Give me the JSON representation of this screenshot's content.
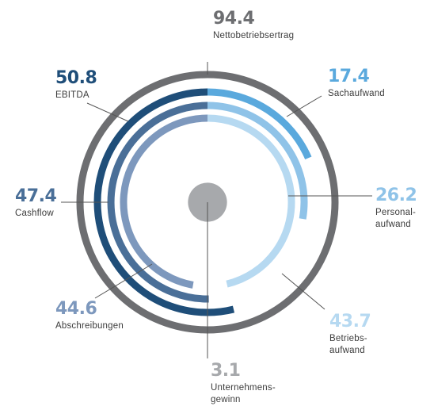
{
  "chart_data": {
    "type": "radial-bar",
    "title": "",
    "full_scale": 94.4,
    "center_label": "",
    "series": [
      {
        "name": "Nettobetriebsertrag",
        "label_lines": [
          "Nettobetriebsertrag"
        ],
        "value": 94.4,
        "display": "94.4",
        "color": "#6d6e71",
        "group": "total"
      },
      {
        "name": "Sachaufwand",
        "label_lines": [
          "Sachaufwand"
        ],
        "value": 17.4,
        "display": "17.4",
        "color": "#5aa9dd",
        "group": "cost"
      },
      {
        "name": "Personalaufwand",
        "label_lines": [
          "Personal-",
          "aufwand"
        ],
        "value": 26.2,
        "display": "26.2",
        "color": "#8fc3e8",
        "group": "cost"
      },
      {
        "name": "Betriebsaufwand",
        "label_lines": [
          "Betriebs-",
          "aufwand"
        ],
        "value": 43.7,
        "display": "43.7",
        "color": "#b6d9f1",
        "group": "cost"
      },
      {
        "name": "EBITDA",
        "label_lines": [
          "EBITDA"
        ],
        "value": 50.8,
        "display": "50.8",
        "color": "#1f4e79",
        "group": "result"
      },
      {
        "name": "Cashflow",
        "label_lines": [
          "Cashflow"
        ],
        "value": 47.4,
        "display": "47.4",
        "color": "#4a6f98",
        "group": "result"
      },
      {
        "name": "Abschreibungen",
        "label_lines": [
          "Abschreibungen"
        ],
        "value": 44.6,
        "display": "44.6",
        "color": "#7d98bd",
        "group": "result"
      },
      {
        "name": "Unternehmensgewinn",
        "label_lines": [
          "Unternehmens-",
          "gewinn"
        ],
        "value": 3.1,
        "display": "3.1",
        "color": "#a7a9ac",
        "group": "center"
      }
    ]
  }
}
